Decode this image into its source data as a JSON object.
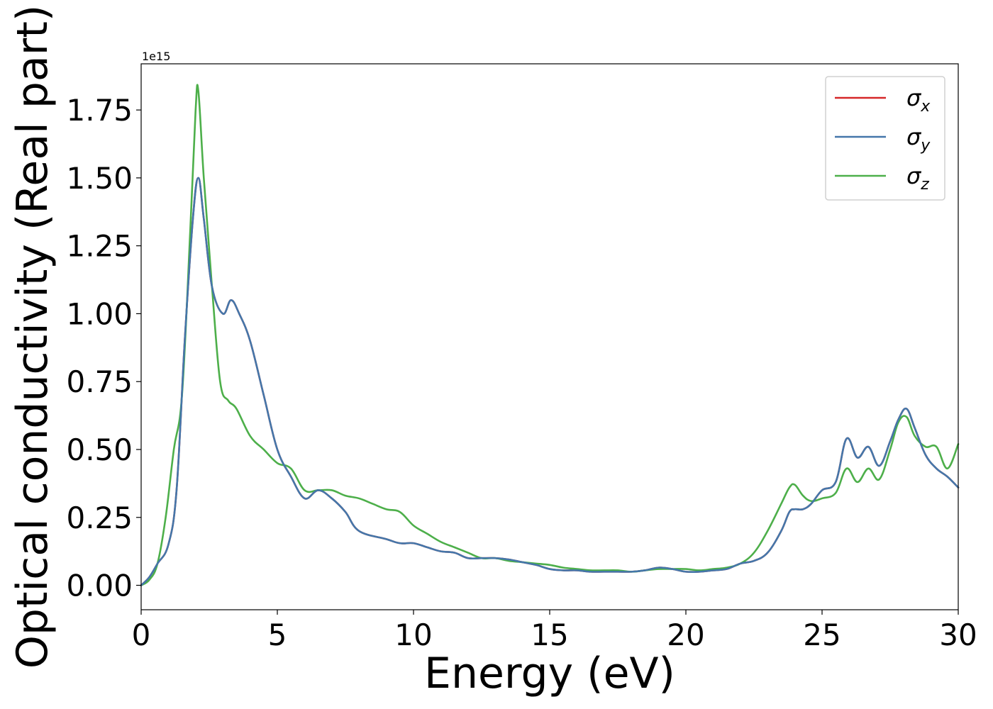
{
  "chart_data": {
    "type": "line",
    "xlabel": "Energy (eV)",
    "ylabel": "Optical conductivity (Real part)",
    "offset_text": "1e15",
    "xlim": [
      0,
      30
    ],
    "ylim": [
      -0.09,
      1.92
    ],
    "x_ticks": [
      0,
      5,
      10,
      15,
      20,
      25,
      30
    ],
    "x_tick_labels": [
      "0",
      "5",
      "10",
      "15",
      "20",
      "25",
      "30"
    ],
    "y_ticks": [
      0.0,
      0.25,
      0.5,
      0.75,
      1.0,
      1.25,
      1.5,
      1.75
    ],
    "y_tick_labels": [
      "0.00",
      "0.25",
      "0.50",
      "0.75",
      "1.00",
      "1.25",
      "1.50",
      "1.75"
    ],
    "grid": false,
    "legend_position": "top-right",
    "series": [
      {
        "name": "σx",
        "legend_symbol": "σ",
        "legend_sub": "x",
        "color": "#d62728",
        "x": [
          0,
          0.3,
          0.6,
          1.0,
          1.3,
          1.6,
          1.9,
          2.1,
          2.3,
          2.6,
          3.0,
          3.3,
          3.6,
          4.0,
          4.5,
          5.0,
          5.5,
          6.0,
          6.5,
          7.0,
          7.5,
          8.0,
          9.0,
          9.5,
          10.0,
          10.5,
          11.0,
          11.5,
          12.0,
          12.5,
          13.0,
          13.5,
          14.0,
          14.5,
          15.0,
          15.5,
          16.0,
          16.5,
          17.0,
          17.5,
          18.0,
          18.5,
          19.0,
          19.5,
          20.0,
          20.5,
          21.0,
          21.5,
          22.0,
          22.5,
          23.0,
          23.5,
          23.8,
          24.0,
          24.3,
          24.6,
          25.0,
          25.5,
          25.9,
          26.3,
          26.7,
          27.1,
          27.5,
          27.8,
          28.1,
          28.4,
          28.8,
          29.2,
          29.6,
          30.0
        ],
        "y": [
          0.0,
          0.03,
          0.08,
          0.15,
          0.35,
          0.9,
          1.35,
          1.5,
          1.35,
          1.1,
          1.0,
          1.05,
          1.0,
          0.9,
          0.7,
          0.5,
          0.4,
          0.32,
          0.35,
          0.32,
          0.27,
          0.2,
          0.17,
          0.155,
          0.155,
          0.14,
          0.125,
          0.12,
          0.1,
          0.1,
          0.1,
          0.095,
          0.085,
          0.075,
          0.06,
          0.055,
          0.055,
          0.05,
          0.05,
          0.05,
          0.05,
          0.055,
          0.065,
          0.06,
          0.05,
          0.05,
          0.055,
          0.06,
          0.08,
          0.09,
          0.12,
          0.2,
          0.27,
          0.28,
          0.28,
          0.3,
          0.35,
          0.38,
          0.54,
          0.47,
          0.51,
          0.44,
          0.53,
          0.61,
          0.65,
          0.58,
          0.48,
          0.43,
          0.4,
          0.36
        ]
      },
      {
        "name": "σy",
        "legend_symbol": "σ",
        "legend_sub": "y",
        "color": "#4477aa",
        "x": [
          0,
          0.3,
          0.6,
          1.0,
          1.3,
          1.6,
          1.9,
          2.1,
          2.3,
          2.6,
          3.0,
          3.3,
          3.6,
          4.0,
          4.5,
          5.0,
          5.5,
          6.0,
          6.5,
          7.0,
          7.5,
          8.0,
          9.0,
          9.5,
          10.0,
          10.5,
          11.0,
          11.5,
          12.0,
          12.5,
          13.0,
          13.5,
          14.0,
          14.5,
          15.0,
          15.5,
          16.0,
          16.5,
          17.0,
          17.5,
          18.0,
          18.5,
          19.0,
          19.5,
          20.0,
          20.5,
          21.0,
          21.5,
          22.0,
          22.5,
          23.0,
          23.5,
          23.8,
          24.0,
          24.3,
          24.6,
          25.0,
          25.5,
          25.9,
          26.3,
          26.7,
          27.1,
          27.5,
          27.8,
          28.1,
          28.4,
          28.8,
          29.2,
          29.6,
          30.0
        ],
        "y": [
          0.0,
          0.03,
          0.08,
          0.15,
          0.35,
          0.9,
          1.35,
          1.5,
          1.35,
          1.1,
          1.0,
          1.05,
          1.0,
          0.9,
          0.7,
          0.5,
          0.4,
          0.32,
          0.35,
          0.32,
          0.27,
          0.2,
          0.17,
          0.155,
          0.155,
          0.14,
          0.125,
          0.12,
          0.1,
          0.1,
          0.1,
          0.095,
          0.085,
          0.075,
          0.06,
          0.055,
          0.055,
          0.05,
          0.05,
          0.05,
          0.05,
          0.055,
          0.065,
          0.06,
          0.05,
          0.05,
          0.055,
          0.06,
          0.08,
          0.09,
          0.12,
          0.2,
          0.27,
          0.28,
          0.28,
          0.3,
          0.35,
          0.38,
          0.54,
          0.47,
          0.51,
          0.44,
          0.53,
          0.61,
          0.65,
          0.58,
          0.48,
          0.43,
          0.4,
          0.36
        ]
      },
      {
        "name": "σz",
        "legend_symbol": "σ",
        "legend_sub": "z",
        "color": "#4daf4a",
        "x": [
          0,
          0.3,
          0.6,
          0.9,
          1.2,
          1.5,
          1.8,
          2.0,
          2.1,
          2.3,
          2.6,
          2.9,
          3.2,
          3.5,
          4.0,
          4.5,
          5.0,
          5.5,
          6.0,
          6.5,
          7.0,
          7.5,
          8.0,
          8.5,
          9.0,
          9.5,
          10.0,
          10.5,
          11.0,
          11.5,
          12.0,
          12.5,
          13.0,
          13.5,
          14.0,
          14.5,
          15.0,
          15.5,
          16.0,
          16.5,
          17.0,
          17.5,
          18.0,
          18.5,
          19.0,
          19.5,
          20.0,
          20.5,
          21.0,
          21.5,
          22.0,
          22.5,
          23.0,
          23.5,
          23.8,
          24.0,
          24.3,
          24.6,
          25.0,
          25.5,
          25.9,
          26.3,
          26.7,
          27.1,
          27.5,
          27.8,
          28.1,
          28.4,
          28.8,
          29.2,
          29.6,
          30.0
        ],
        "y": [
          0.0,
          0.02,
          0.08,
          0.25,
          0.5,
          0.7,
          1.3,
          1.75,
          1.82,
          1.5,
          1.1,
          0.75,
          0.68,
          0.65,
          0.55,
          0.5,
          0.45,
          0.43,
          0.35,
          0.35,
          0.35,
          0.33,
          0.32,
          0.3,
          0.28,
          0.27,
          0.22,
          0.19,
          0.16,
          0.14,
          0.12,
          0.1,
          0.1,
          0.09,
          0.085,
          0.08,
          0.075,
          0.065,
          0.06,
          0.055,
          0.055,
          0.055,
          0.05,
          0.055,
          0.06,
          0.06,
          0.06,
          0.055,
          0.06,
          0.065,
          0.08,
          0.12,
          0.2,
          0.3,
          0.36,
          0.37,
          0.33,
          0.31,
          0.32,
          0.34,
          0.43,
          0.38,
          0.43,
          0.39,
          0.5,
          0.6,
          0.62,
          0.55,
          0.51,
          0.51,
          0.43,
          0.52
        ]
      }
    ]
  }
}
